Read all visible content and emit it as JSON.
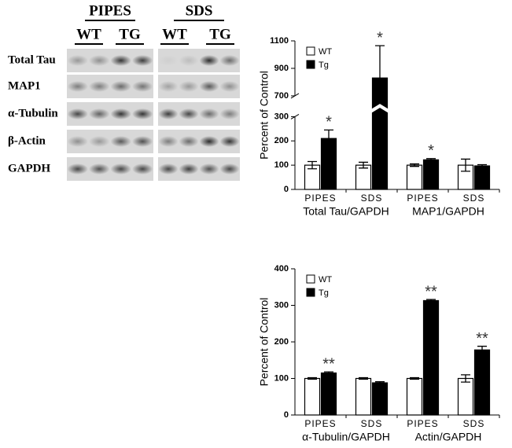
{
  "blot": {
    "conditions": [
      "PIPES",
      "SDS"
    ],
    "genotypes": [
      "WT",
      "TG",
      "WT",
      "TG"
    ],
    "rows": [
      "Total Tau",
      "MAP1",
      "α-Tubulin",
      "β-Actin",
      "GAPDH"
    ]
  },
  "chart_data": [
    {
      "type": "bar",
      "y_label": "Percent of Control",
      "categories": [
        "PIPES",
        "SDS",
        "PIPES",
        "SDS"
      ],
      "groups": [
        "Total Tau/GAPDH",
        "MAP1/GAPDH"
      ],
      "series": [
        {
          "name": "WT",
          "color": "#ffffff",
          "values": [
            100,
            100,
            100,
            100
          ],
          "errors": [
            15,
            12,
            5,
            25
          ],
          "labels": [
            null,
            null,
            null,
            null
          ]
        },
        {
          "name": "Tg",
          "color": "#000000",
          "values": [
            210,
            830,
            122,
            97
          ],
          "errors": [
            35,
            235,
            5,
            5
          ],
          "labels": [
            "*",
            "*",
            "*",
            null
          ]
        }
      ],
      "ylim": [
        0,
        1100
      ],
      "y_break": [
        300,
        700
      ],
      "yticks": [
        0,
        100,
        200,
        300,
        700,
        900,
        1100
      ]
    },
    {
      "type": "bar",
      "y_label": "Percent of Control",
      "categories": [
        "PIPES",
        "SDS",
        "PIPES",
        "SDS"
      ],
      "groups": [
        "α-Tubulin/GAPDH",
        "Actin/GAPDH"
      ],
      "series": [
        {
          "name": "WT",
          "color": "#ffffff",
          "values": [
            100,
            100,
            100,
            100
          ],
          "errors": [
            2,
            2,
            2,
            10
          ],
          "labels": [
            null,
            null,
            null,
            null
          ]
        },
        {
          "name": "Tg",
          "color": "#000000",
          "values": [
            115,
            88,
            313,
            178
          ],
          "errors": [
            3,
            3,
            3,
            10
          ],
          "labels": [
            "**",
            null,
            "**",
            "**"
          ]
        }
      ],
      "ylim": [
        0,
        400
      ],
      "yticks": [
        0,
        100,
        200,
        300,
        400
      ]
    }
  ]
}
